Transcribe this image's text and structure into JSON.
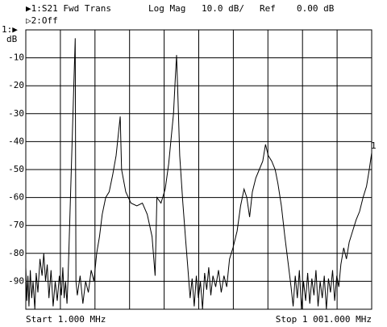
{
  "chart_data": {
    "type": "line",
    "header": {
      "format": "Log Mag",
      "scale": "10.0 dB/",
      "ref": "Ref",
      "ref_value": "0.00 dB",
      "channel2": "▷2:Off"
    },
    "ref_marker": "1:▶",
    "y_unit": "dB",
    "start_label": "Start 1.000 MHz",
    "stop_label": "Stop 1 001.000 MHz",
    "marker_label": "1",
    "xlim": [
      1,
      1001
    ],
    "xticks": [
      1,
      101,
      201,
      301,
      401,
      501,
      601,
      701,
      801,
      901,
      1001
    ],
    "ylim": [
      -100,
      0
    ],
    "yticks": [
      -10,
      -20,
      -30,
      -40,
      -50,
      -60,
      -70,
      -80,
      -90
    ],
    "grid": true,
    "x": [
      1,
      4,
      7,
      10,
      14,
      18,
      22,
      27,
      31,
      36,
      42,
      48,
      53,
      58,
      63,
      68,
      74,
      80,
      86,
      92,
      98,
      104,
      108,
      112,
      116,
      120,
      123,
      144,
      146,
      150,
      158,
      166,
      174,
      182,
      190,
      198,
      206,
      214,
      222,
      232,
      242,
      252,
      262,
      274,
      278,
      290,
      305,
      322,
      338,
      352,
      366,
      375,
      380,
      392,
      404,
      414,
      428,
      433,
      437,
      441,
      446,
      455,
      463,
      470,
      476,
      482,
      488,
      494,
      500,
      506,
      512,
      518,
      524,
      530,
      536,
      542,
      550,
      558,
      566,
      574,
      582,
      590,
      600,
      612,
      622,
      632,
      640,
      648,
      656,
      666,
      676,
      686,
      694,
      702,
      712,
      722,
      730,
      740,
      750,
      760,
      768,
      774,
      780,
      786,
      792,
      798,
      804,
      810,
      816,
      822,
      828,
      834,
      840,
      846,
      852,
      858,
      864,
      870,
      876,
      882,
      888,
      894,
      900,
      906,
      912,
      920,
      928,
      936,
      946,
      956,
      966,
      976,
      986,
      994,
      1001
    ],
    "series": [
      {
        "name": "▶1:S21 Fwd Trans",
        "color": "#000000",
        "values": [
          -85,
          -97,
          -88,
          -99,
          -86,
          -96,
          -90,
          -100,
          -87,
          -94,
          -82,
          -88,
          -80,
          -90,
          -84,
          -96,
          -86,
          -99,
          -90,
          -97,
          -88,
          -95,
          -85,
          -96,
          -90,
          -98,
          -90,
          -3,
          -90,
          -95,
          -88,
          -98,
          -90,
          -94,
          -86,
          -90,
          -80,
          -74,
          -66,
          -60,
          -58,
          -52,
          -45,
          -31,
          -50,
          -58,
          -62,
          -63,
          -62,
          -66,
          -74,
          -88,
          -60,
          -62,
          -57,
          -48,
          -30,
          -18,
          -9,
          -25,
          -45,
          -62,
          -75,
          -86,
          -96,
          -89,
          -99,
          -88,
          -96,
          -90,
          -100,
          -87,
          -93,
          -85,
          -95,
          -88,
          -92,
          -86,
          -94,
          -88,
          -92,
          -82,
          -78,
          -72,
          -63,
          -57,
          -60,
          -67,
          -58,
          -53,
          -50,
          -47,
          -41,
          -45,
          -47,
          -50,
          -55,
          -63,
          -74,
          -84,
          -92,
          -99,
          -88,
          -96,
          -86,
          -100,
          -90,
          -97,
          -87,
          -98,
          -89,
          -95,
          -86,
          -99,
          -90,
          -96,
          -88,
          -100,
          -89,
          -94,
          -86,
          -97,
          -88,
          -92,
          -84,
          -78,
          -82,
          -76,
          -72,
          -68,
          -65,
          -60,
          -56,
          -50,
          -44
        ]
      }
    ]
  }
}
